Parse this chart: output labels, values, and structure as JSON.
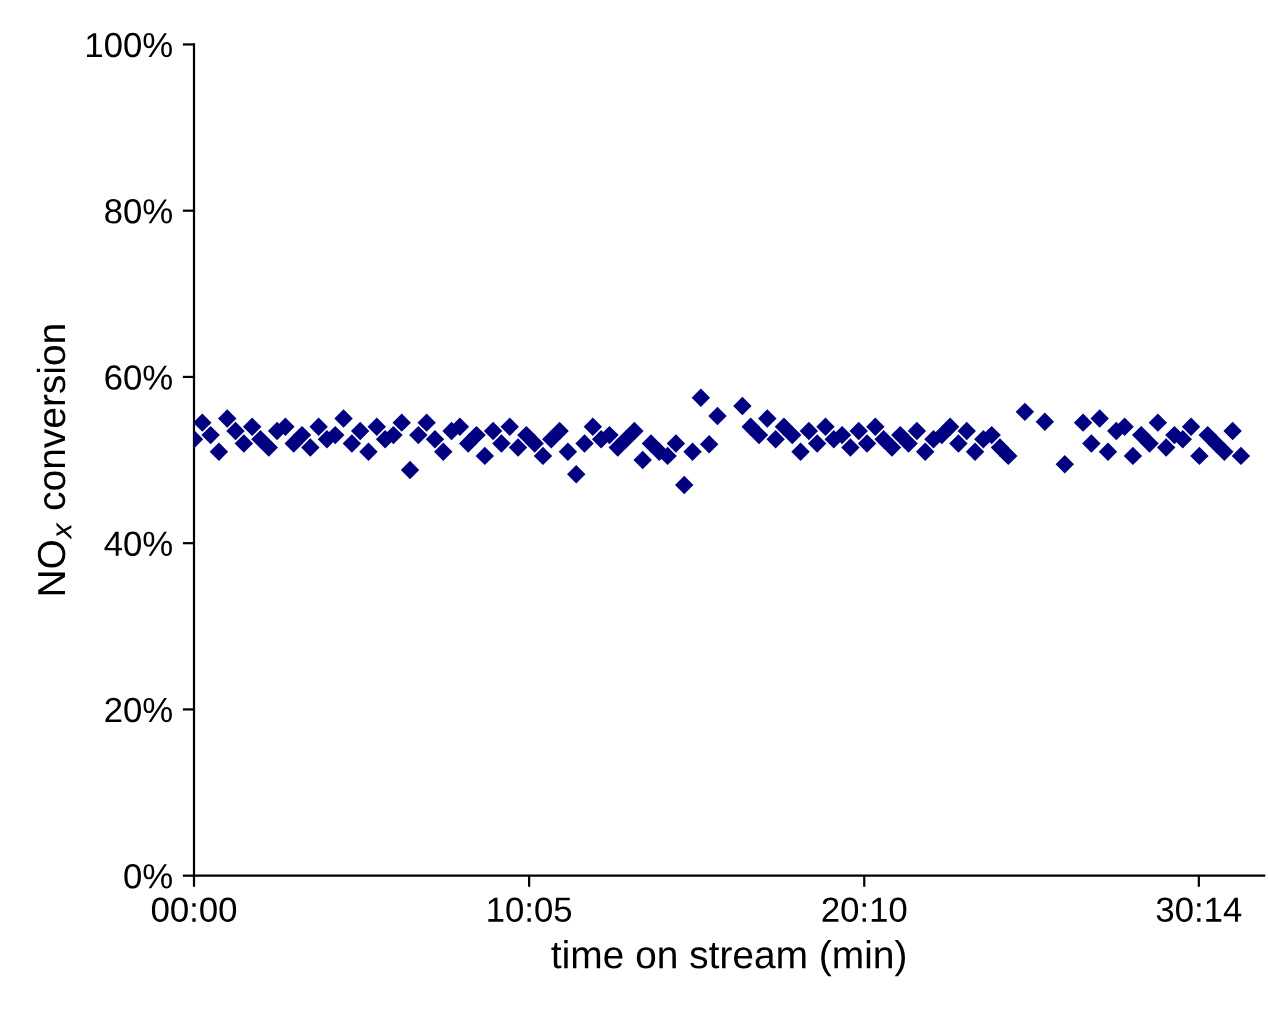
{
  "chart_data": {
    "type": "scatter",
    "xlabel": "time on stream (min)",
    "ylabel": "NO$_{x}$ conversion",
    "marker": "diamond",
    "grid": false,
    "xlim": [
      0,
      32.2
    ],
    "xticks": [
      {
        "value": 0,
        "label": "00:00"
      },
      {
        "value": 10.0833,
        "label": "10:05"
      },
      {
        "value": 20.1667,
        "label": "20:10"
      },
      {
        "value": 30.2333,
        "label": "30:14"
      }
    ],
    "ylim": [
      0,
      100
    ],
    "yticks": [
      {
        "value": 0,
        "label": "0%"
      },
      {
        "value": 20,
        "label": "20%"
      },
      {
        "value": 40,
        "label": "40%"
      },
      {
        "value": 60,
        "label": "60%"
      },
      {
        "value": 80,
        "label": "80%"
      },
      {
        "value": 100,
        "label": "100%"
      }
    ],
    "series": [
      {
        "color": "#000080",
        "x": [
          0,
          0.25,
          0.5,
          0.75,
          1,
          1.25,
          1.5,
          1.75,
          2,
          2.25,
          2.5,
          2.75,
          3,
          3.25,
          3.5,
          3.75,
          4,
          4.25,
          4.5,
          4.75,
          5,
          5.25,
          5.5,
          5.75,
          6,
          6.25,
          6.5,
          6.75,
          7,
          7.25,
          7.5,
          7.75,
          8,
          8.25,
          8.5,
          8.75,
          9,
          9.25,
          9.5,
          9.75,
          10,
          10.25,
          10.5,
          10.75,
          11,
          11.25,
          11.5,
          11.75,
          12,
          12.25,
          12.5,
          12.75,
          13,
          13.25,
          13.5,
          13.75,
          14,
          14.25,
          14.5,
          14.75,
          15,
          15.25,
          15.5,
          15.75,
          16.5,
          16.75,
          17,
          17.25,
          17.5,
          17.75,
          18,
          18.25,
          18.5,
          18.75,
          19,
          19.25,
          19.5,
          19.75,
          20,
          20.25,
          20.5,
          20.75,
          21,
          21.25,
          21.5,
          21.75,
          22,
          22.25,
          22.5,
          22.75,
          23,
          23.25,
          23.5,
          23.75,
          24,
          24.25,
          24.5,
          25,
          25.6,
          26.2,
          26.75,
          27,
          27.25,
          27.5,
          27.75,
          28,
          28.25,
          28.5,
          28.75,
          29,
          29.25,
          29.5,
          29.75,
          30,
          30.25,
          30.5,
          30.75,
          31,
          31.25,
          31.5
        ],
        "values": [
          52.5,
          54.5,
          53,
          51,
          55,
          53.5,
          52,
          54,
          52.5,
          51.5,
          53.5,
          54,
          52,
          53,
          51.5,
          54,
          52.5,
          53,
          55,
          52,
          53.5,
          51,
          54,
          52.5,
          53,
          54.5,
          48.8,
          53,
          54.5,
          52.5,
          51,
          53.5,
          54,
          52,
          53,
          50.5,
          53.5,
          52,
          54,
          51.5,
          53,
          52,
          50.5,
          52.5,
          53.5,
          51,
          48.3,
          52,
          54,
          52.5,
          53,
          51.5,
          52.5,
          53.5,
          50,
          52,
          51,
          50.5,
          52,
          47,
          51,
          57.5,
          51.9,
          55.3,
          56.5,
          54,
          53,
          55,
          52.5,
          54,
          53,
          51,
          53.5,
          52,
          54,
          52.5,
          53,
          51.5,
          53.5,
          52,
          54,
          52.5,
          51.5,
          53,
          52,
          53.5,
          51,
          52.5,
          53,
          54,
          52,
          53.5,
          51,
          52.5,
          53,
          51.5,
          50.5,
          55.8,
          54.6,
          49.5,
          54.5,
          52,
          55,
          51,
          53.5,
          54,
          50.5,
          53,
          52,
          54.5,
          51.5,
          53,
          52.5,
          54,
          50.5,
          53,
          52,
          51,
          53.5,
          50.5
        ]
      }
    ]
  }
}
